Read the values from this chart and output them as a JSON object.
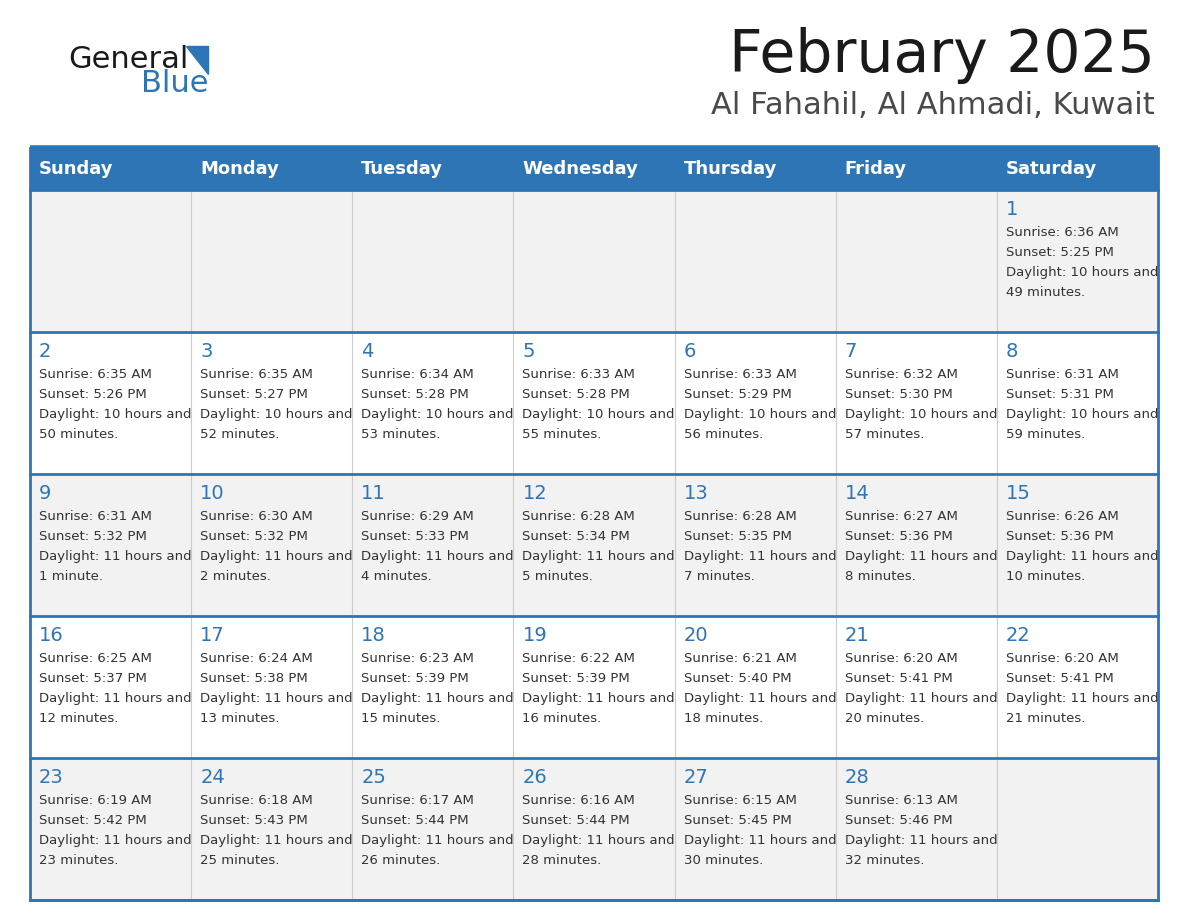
{
  "title": "February 2025",
  "subtitle": "Al Fahahil, Al Ahmadi, Kuwait",
  "days_of_week": [
    "Sunday",
    "Monday",
    "Tuesday",
    "Wednesday",
    "Thursday",
    "Friday",
    "Saturday"
  ],
  "header_bg": "#2E75B6",
  "header_text_color": "#FFFFFF",
  "row_bg_odd": "#F2F2F2",
  "row_bg_even": "#FFFFFF",
  "divider_color": "#2E75B6",
  "text_color": "#333333",
  "day_number_color": "#2E75B6",
  "calendar_data": [
    {
      "day": 1,
      "col": 6,
      "row": 0,
      "sunrise": "6:36 AM",
      "sunset": "5:25 PM",
      "daylight": "10 hours and 49 minutes"
    },
    {
      "day": 2,
      "col": 0,
      "row": 1,
      "sunrise": "6:35 AM",
      "sunset": "5:26 PM",
      "daylight": "10 hours and 50 minutes"
    },
    {
      "day": 3,
      "col": 1,
      "row": 1,
      "sunrise": "6:35 AM",
      "sunset": "5:27 PM",
      "daylight": "10 hours and 52 minutes"
    },
    {
      "day": 4,
      "col": 2,
      "row": 1,
      "sunrise": "6:34 AM",
      "sunset": "5:28 PM",
      "daylight": "10 hours and 53 minutes"
    },
    {
      "day": 5,
      "col": 3,
      "row": 1,
      "sunrise": "6:33 AM",
      "sunset": "5:28 PM",
      "daylight": "10 hours and 55 minutes"
    },
    {
      "day": 6,
      "col": 4,
      "row": 1,
      "sunrise": "6:33 AM",
      "sunset": "5:29 PM",
      "daylight": "10 hours and 56 minutes"
    },
    {
      "day": 7,
      "col": 5,
      "row": 1,
      "sunrise": "6:32 AM",
      "sunset": "5:30 PM",
      "daylight": "10 hours and 57 minutes"
    },
    {
      "day": 8,
      "col": 6,
      "row": 1,
      "sunrise": "6:31 AM",
      "sunset": "5:31 PM",
      "daylight": "10 hours and 59 minutes"
    },
    {
      "day": 9,
      "col": 0,
      "row": 2,
      "sunrise": "6:31 AM",
      "sunset": "5:32 PM",
      "daylight": "11 hours and 1 minute"
    },
    {
      "day": 10,
      "col": 1,
      "row": 2,
      "sunrise": "6:30 AM",
      "sunset": "5:32 PM",
      "daylight": "11 hours and 2 minutes"
    },
    {
      "day": 11,
      "col": 2,
      "row": 2,
      "sunrise": "6:29 AM",
      "sunset": "5:33 PM",
      "daylight": "11 hours and 4 minutes"
    },
    {
      "day": 12,
      "col": 3,
      "row": 2,
      "sunrise": "6:28 AM",
      "sunset": "5:34 PM",
      "daylight": "11 hours and 5 minutes"
    },
    {
      "day": 13,
      "col": 4,
      "row": 2,
      "sunrise": "6:28 AM",
      "sunset": "5:35 PM",
      "daylight": "11 hours and 7 minutes"
    },
    {
      "day": 14,
      "col": 5,
      "row": 2,
      "sunrise": "6:27 AM",
      "sunset": "5:36 PM",
      "daylight": "11 hours and 8 minutes"
    },
    {
      "day": 15,
      "col": 6,
      "row": 2,
      "sunrise": "6:26 AM",
      "sunset": "5:36 PM",
      "daylight": "11 hours and 10 minutes"
    },
    {
      "day": 16,
      "col": 0,
      "row": 3,
      "sunrise": "6:25 AM",
      "sunset": "5:37 PM",
      "daylight": "11 hours and 12 minutes"
    },
    {
      "day": 17,
      "col": 1,
      "row": 3,
      "sunrise": "6:24 AM",
      "sunset": "5:38 PM",
      "daylight": "11 hours and 13 minutes"
    },
    {
      "day": 18,
      "col": 2,
      "row": 3,
      "sunrise": "6:23 AM",
      "sunset": "5:39 PM",
      "daylight": "11 hours and 15 minutes"
    },
    {
      "day": 19,
      "col": 3,
      "row": 3,
      "sunrise": "6:22 AM",
      "sunset": "5:39 PM",
      "daylight": "11 hours and 16 minutes"
    },
    {
      "day": 20,
      "col": 4,
      "row": 3,
      "sunrise": "6:21 AM",
      "sunset": "5:40 PM",
      "daylight": "11 hours and 18 minutes"
    },
    {
      "day": 21,
      "col": 5,
      "row": 3,
      "sunrise": "6:20 AM",
      "sunset": "5:41 PM",
      "daylight": "11 hours and 20 minutes"
    },
    {
      "day": 22,
      "col": 6,
      "row": 3,
      "sunrise": "6:20 AM",
      "sunset": "5:41 PM",
      "daylight": "11 hours and 21 minutes"
    },
    {
      "day": 23,
      "col": 0,
      "row": 4,
      "sunrise": "6:19 AM",
      "sunset": "5:42 PM",
      "daylight": "11 hours and 23 minutes"
    },
    {
      "day": 24,
      "col": 1,
      "row": 4,
      "sunrise": "6:18 AM",
      "sunset": "5:43 PM",
      "daylight": "11 hours and 25 minutes"
    },
    {
      "day": 25,
      "col": 2,
      "row": 4,
      "sunrise": "6:17 AM",
      "sunset": "5:44 PM",
      "daylight": "11 hours and 26 minutes"
    },
    {
      "day": 26,
      "col": 3,
      "row": 4,
      "sunrise": "6:16 AM",
      "sunset": "5:44 PM",
      "daylight": "11 hours and 28 minutes"
    },
    {
      "day": 27,
      "col": 4,
      "row": 4,
      "sunrise": "6:15 AM",
      "sunset": "5:45 PM",
      "daylight": "11 hours and 30 minutes"
    },
    {
      "day": 28,
      "col": 5,
      "row": 4,
      "sunrise": "6:13 AM",
      "sunset": "5:46 PM",
      "daylight": "11 hours and 32 minutes"
    }
  ]
}
